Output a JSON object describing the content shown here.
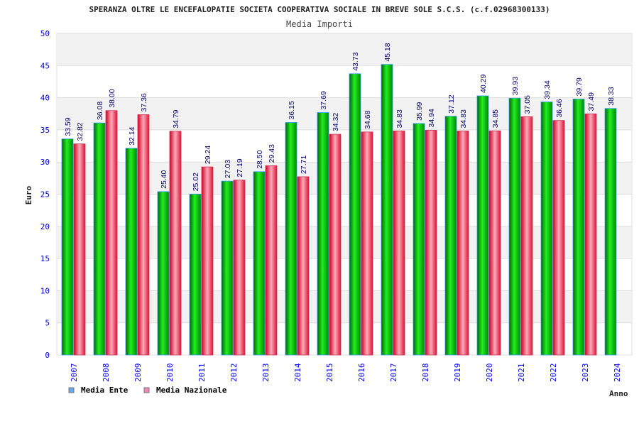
{
  "chart_data": {
    "type": "bar",
    "title": "SPERANZA OLTRE LE ENCEFALOPATIE SOCIETA COOPERATIVA SOCIALE IN BREVE SOLE S.C.S. (c.f.02968300133)",
    "subtitle": "Media Importi",
    "xlabel": "Anno",
    "ylabel": "Euro",
    "ylim": [
      0,
      50
    ],
    "yticks": [
      0,
      5,
      10,
      15,
      20,
      25,
      30,
      35,
      40,
      45,
      50
    ],
    "grid": true,
    "legend_position": "bottom-left",
    "categories": [
      "2007",
      "2008",
      "2009",
      "2010",
      "2011",
      "2012",
      "2013",
      "2014",
      "2015",
      "2016",
      "2017",
      "2018",
      "2019",
      "2020",
      "2021",
      "2022",
      "2023",
      "2024"
    ],
    "series": [
      {
        "name": "Media Ente",
        "color": "#00c000",
        "legend_color": "#66aaee",
        "values": [
          33.59,
          36.08,
          32.14,
          25.4,
          25.02,
          27.03,
          28.5,
          36.15,
          37.69,
          43.73,
          45.18,
          35.99,
          37.12,
          40.29,
          39.93,
          39.34,
          39.79,
          38.33
        ]
      },
      {
        "name": "Media Nazionale",
        "color": "#ee2233",
        "legend_color": "#ee88bb",
        "values": [
          32.82,
          38.0,
          37.36,
          34.79,
          29.24,
          27.19,
          29.43,
          27.71,
          34.32,
          34.68,
          34.83,
          34.94,
          34.83,
          34.85,
          37.05,
          36.46,
          37.49,
          null
        ]
      }
    ]
  }
}
